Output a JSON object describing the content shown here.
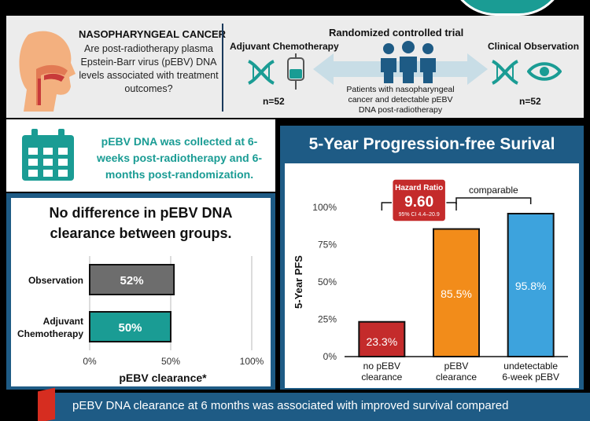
{
  "header": {
    "title": "NASOPHARYNGEAL CANCER",
    "question": "Are post-radiotherapy plasma Epstein-Barr virus (pEBV) DNA levels associated with treatment outcomes?",
    "left_arm": "Adjuvant Chemotherapy",
    "left_n": "n=52",
    "rct_title": "Randomized controlled trial",
    "patients": "Patients with nasopharyngeal cancer and detectable pEBV DNA post-radiotherapy",
    "right_arm": "Clinical Observation",
    "right_n": "n=52"
  },
  "schedule": {
    "text": "pEBV DNA was collected at 6-weeks post-radiotherapy and 6-months post-randomization."
  },
  "clearance": {
    "title": "No difference in pEBV DNA clearance between groups."
  },
  "pfs": {
    "title": "5-Year Progression-free Surival",
    "hazard_label": "Hazard Ratio",
    "hazard_value": "9.60",
    "hazard_ci": "95% CI 4.4–20.9",
    "comparable": "comparable"
  },
  "bottom": {
    "text": "pEBV DNA clearance at 6 months was associated with improved survival compared"
  },
  "colors": {
    "teal": "#1a9c94",
    "navy": "#1e5b85",
    "gray_bar": "#6d6d6d",
    "red_bar": "#c42b2b",
    "orange_bar": "#f28c1a",
    "blue_bar": "#3da3dd"
  },
  "chart_data": [
    {
      "type": "bar",
      "orientation": "horizontal",
      "categories": [
        "Observation",
        "Adjuvant Chemotherapy"
      ],
      "values": [
        52,
        50
      ],
      "value_labels": [
        "52%",
        "50%"
      ],
      "bar_colors": [
        "#6d6d6d",
        "#1a9c94"
      ],
      "xlabel": "pEBV clearance*",
      "xlim": [
        0,
        100
      ],
      "xticks": [
        "0%",
        "50%",
        "100%"
      ],
      "grid": true
    },
    {
      "type": "bar",
      "categories": [
        "no pEBV clearance",
        "pEBV clearance",
        "undetectable 6-week pEBV"
      ],
      "category_lines": [
        [
          "no pEBV",
          "clearance"
        ],
        [
          "pEBV",
          "clearance"
        ],
        [
          "undetectable",
          "6-week pEBV"
        ]
      ],
      "values": [
        23.3,
        85.5,
        95.8
      ],
      "value_labels": [
        "23.3%",
        "85.5%",
        "95.8%"
      ],
      "bar_colors": [
        "#c42b2b",
        "#f28c1a",
        "#3da3dd"
      ],
      "ylabel": "5-Year PFS",
      "ylim": [
        0,
        100
      ],
      "yticks": [
        "0%",
        "25%",
        "50%",
        "75%",
        "100%"
      ],
      "grid": false
    }
  ]
}
